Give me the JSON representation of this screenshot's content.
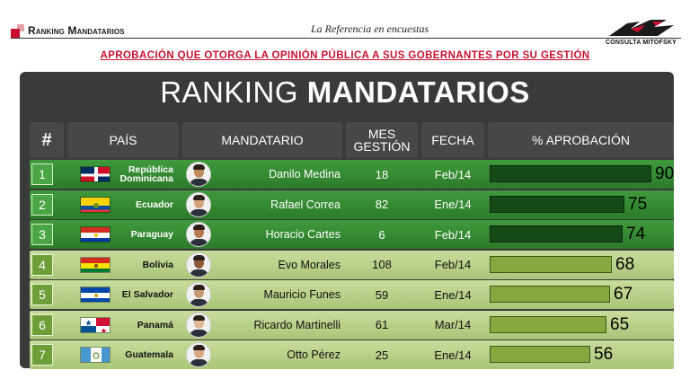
{
  "header": {
    "brand": "Ranking Mandatarios",
    "tagline": "La Referencia en encuestas",
    "logo_text": "CONSULTA MITOFSKY",
    "subtitle": "APROBACIÓN QUE OTORGA LA OPINIÓN PÚBLICA A SUS GOBERNANTES POR SU GESTIÓN"
  },
  "board": {
    "title_light": "RANKING",
    "title_bold": "MANDATARIOS",
    "columns": [
      "#",
      "PAÍS",
      "MANDATARIO",
      "MES GESTIÓN",
      "FECHA",
      "% APROBACIÓN"
    ]
  },
  "colors": {
    "accent_red": "#c8102e",
    "board": "#3a3a3a",
    "top_row_green": "#2c7a2a",
    "lower_row_green": "#a9c678"
  },
  "rows": [
    {
      "rank": "1",
      "country": "República Dominicana",
      "leader": "Danilo Medina",
      "months": "18",
      "date": "Feb/14",
      "approval": 90,
      "approval_label": "90",
      "tier": "dark",
      "flag": "dominican-republic-flag-icon"
    },
    {
      "rank": "2",
      "country": "Ecuador",
      "leader": "Rafael Correa",
      "months": "82",
      "date": "Ene/14",
      "approval": 75,
      "approval_label": "75",
      "tier": "dark",
      "flag": "ecuador-flag-icon"
    },
    {
      "rank": "3",
      "country": "Paraguay",
      "leader": "Horacio Cartes",
      "months": "6",
      "date": "Feb/14",
      "approval": 74,
      "approval_label": "74",
      "tier": "dark",
      "flag": "paraguay-flag-icon"
    },
    {
      "rank": "4",
      "country": "Bolivia",
      "leader": "Evo Morales",
      "months": "108",
      "date": "Feb/14",
      "approval": 68,
      "approval_label": "68",
      "tier": "light",
      "flag": "bolivia-flag-icon"
    },
    {
      "rank": "5",
      "country": "El Salvador",
      "leader": "Mauricio Funes",
      "months": "59",
      "date": "Ene/14",
      "approval": 67,
      "approval_label": "67",
      "tier": "light",
      "flag": "el-salvador-flag-icon"
    },
    {
      "rank": "6",
      "country": "Panamá",
      "leader": "Ricardo Martinelli",
      "months": "61",
      "date": "Mar/14",
      "approval": 65,
      "approval_label": "65",
      "tier": "light",
      "flag": "panama-flag-icon"
    },
    {
      "rank": "7",
      "country": "Guatemala",
      "leader": "Otto Pérez",
      "months": "25",
      "date": "Ene/14",
      "approval": 56,
      "approval_label": "56",
      "tier": "light",
      "flag": "guatemala-flag-icon"
    }
  ],
  "chart_data": {
    "type": "bar",
    "title": "RANKING MANDATARIOS",
    "subtitle": "APROBACIÓN QUE OTORGA LA OPINIÓN PÚBLICA A SUS GOBERNANTES POR SU GESTIÓN",
    "categories": [
      "República Dominicana",
      "Ecuador",
      "Paraguay",
      "Bolivia",
      "El Salvador",
      "Panamá",
      "Guatemala"
    ],
    "values": [
      90,
      75,
      74,
      68,
      67,
      65,
      56
    ],
    "xlabel": "% APROBACIÓN",
    "ylabel": "PAÍS",
    "orientation": "horizontal",
    "xlim": [
      0,
      100
    ]
  }
}
